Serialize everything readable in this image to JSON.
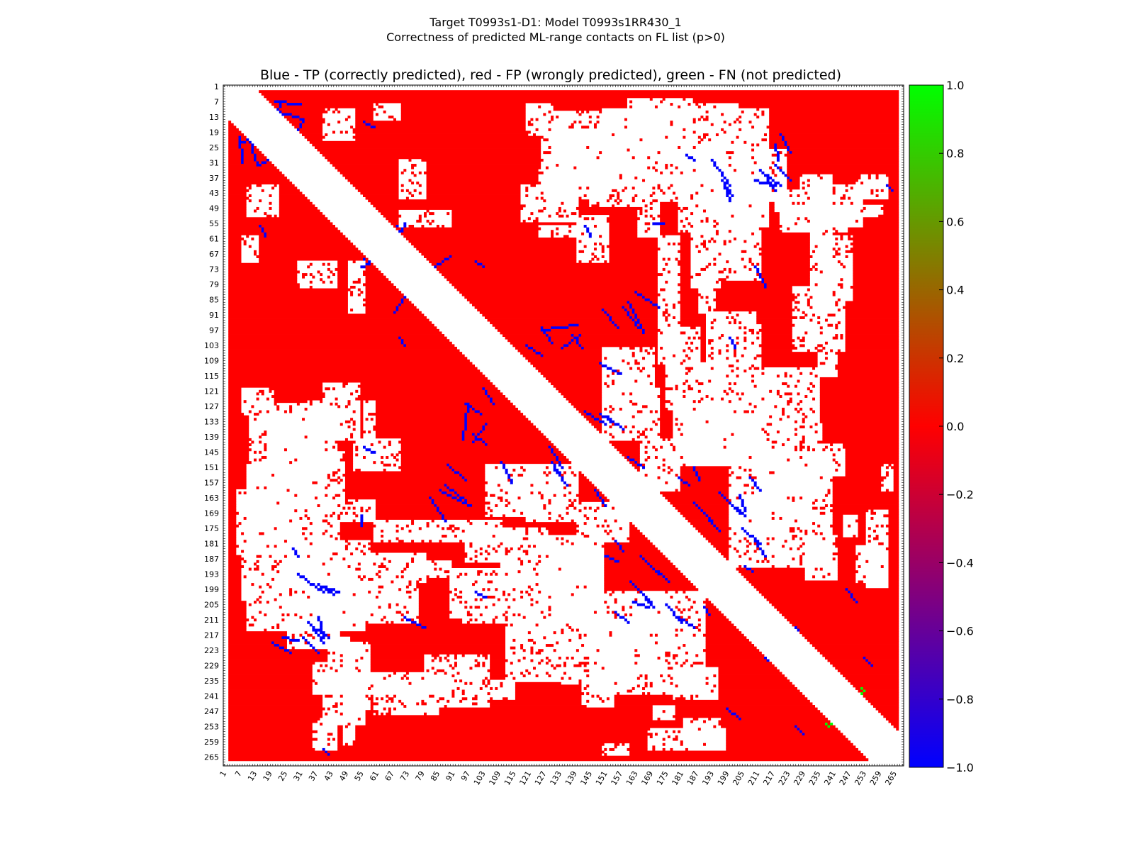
{
  "chart_data": {
    "type": "heatmap",
    "title_line1": "Target T0993s1-D1: Model T0993s1RR430_1",
    "title_line2": "Correctness of predicted ML-range contacts on FL list (p>0)",
    "axes_title": "Blue - TP (correctly predicted), red - FP (wrongly predicted), green - FN (not predicted)",
    "residue_range": [
      1,
      268
    ],
    "tick_labels": [
      "1",
      "7",
      "13",
      "19",
      "25",
      "31",
      "37",
      "43",
      "49",
      "55",
      "61",
      "67",
      "73",
      "79",
      "85",
      "91",
      "97",
      "103",
      "109",
      "115",
      "121",
      "127",
      "133",
      "139",
      "145",
      "151",
      "157",
      "163",
      "169",
      "175",
      "181",
      "187",
      "193",
      "199",
      "205",
      "211",
      "217",
      "223",
      "229",
      "235",
      "241",
      "247",
      "253",
      "259",
      "265"
    ],
    "colorbar": {
      "ticks": [
        "1.0",
        "0.8",
        "0.6",
        "0.4",
        "0.2",
        "0.0",
        "−0.2",
        "−0.4",
        "−0.6",
        "−0.8",
        "−1.0"
      ],
      "range": [
        -1.0,
        1.0
      ],
      "colors": [
        "#00ff00",
        "#ff0000",
        "#0000ff"
      ]
    },
    "cell_colors": {
      "tp": "#0000ff",
      "fp": "#ff0000",
      "fn": "#00ff00",
      "none": "#ffffff"
    },
    "white_blocks": [
      [
        10,
        22,
        40,
        52
      ],
      [
        8,
        14,
        60,
        70
      ],
      [
        8,
        20,
        120,
        130
      ],
      [
        11,
        40,
        126,
        158
      ],
      [
        6,
        30,
        160,
        185
      ],
      [
        8,
        12,
        185,
        203
      ],
      [
        22,
        48,
        145,
        165
      ],
      [
        24,
        42,
        178,
        198
      ],
      [
        37,
        52,
        188,
        208
      ],
      [
        26,
        46,
        210,
        222
      ],
      [
        46,
        56,
        200,
        215
      ],
      [
        52,
        70,
        140,
        152
      ],
      [
        22,
        30,
        146,
        172
      ],
      [
        40,
        54,
        118,
        140
      ],
      [
        48,
        52,
        222,
        245
      ],
      [
        60,
        68,
        145,
        152
      ],
      [
        60,
        110,
        172,
        180
      ],
      [
        75,
        90,
        188,
        194
      ],
      [
        90,
        120,
        191,
        198
      ],
      [
        80,
        105,
        225,
        245
      ],
      [
        36,
        40,
        252,
        262
      ],
      [
        48,
        51,
        256,
        260
      ],
      [
        120,
        128,
        164,
        170
      ],
      [
        126,
        150,
        178,
        200
      ],
      [
        130,
        150,
        188,
        212
      ],
      [
        145,
        175,
        212,
        240
      ],
      [
        150,
        168,
        210,
        230
      ],
      [
        165,
        190,
        200,
        240
      ],
      [
        140,
        160,
        165,
        180
      ],
      [
        130,
        170,
        19,
        36
      ],
      [
        150,
        210,
        10,
        30
      ],
      [
        165,
        215,
        31,
        46
      ],
      [
        180,
        200,
        38,
        58
      ],
      [
        185,
        196,
        52,
        80
      ],
      [
        190,
        212,
        56,
        77
      ],
      [
        200,
        215,
        10,
        55
      ],
      [
        182,
        200,
        110,
        150
      ],
      [
        198,
        210,
        90,
        150
      ],
      [
        200,
        212,
        95,
        135
      ],
      [
        200,
        222,
        150,
        178
      ],
      [
        210,
        235,
        112,
        160
      ],
      [
        235,
        245,
        142,
        154
      ],
      [
        230,
        242,
        178,
        195
      ],
      [
        230,
        240,
        185,
        195
      ],
      [
        133,
        150,
        25,
        45
      ],
      [
        150,
        170,
        104,
        124
      ],
      [
        160,
        172,
        120,
        140
      ],
      [
        175,
        188,
        96,
        128
      ],
      [
        164,
        172,
        45,
        60
      ],
      [
        125,
        140,
        34,
        40
      ],
      [
        125,
        150,
        56,
        60
      ],
      [
        218,
        240,
        42,
        50
      ],
      [
        220,
        246,
        50,
        58
      ],
      [
        228,
        240,
        36,
        44
      ],
      [
        232,
        240,
        52,
        90
      ],
      [
        250,
        262,
        38,
        45
      ],
      [
        252,
        258,
        48,
        52
      ],
      [
        260,
        264,
        150,
        160
      ],
      [
        250,
        262,
        182,
        196
      ],
      [
        168,
        198,
        254,
        262
      ],
      [
        170,
        178,
        245,
        250
      ],
      [
        30,
        45,
        70,
        80
      ],
      [
        50,
        56,
        70,
        90
      ],
      [
        40,
        56,
        232,
        252
      ],
      [
        60,
        85,
        235,
        248
      ],
      [
        120,
        140,
        150,
        160
      ],
      [
        105,
        115,
        235,
        242
      ],
      [
        218,
        225,
        130,
        136
      ],
      [
        222,
        232,
        165,
        172
      ],
      [
        230,
        236,
        134,
        140
      ]
    ],
    "blue_segments": [
      [
        7,
        21,
        8,
        31
      ],
      [
        9,
        16,
        14,
        32
      ],
      [
        7,
        23,
        15,
        21
      ],
      [
        28,
        23,
        32,
        14
      ],
      [
        29,
        22,
        31,
        26
      ],
      [
        55,
        72,
        68,
        67
      ],
      [
        57,
        66,
        69,
        56
      ],
      [
        36,
        38,
        34,
        40
      ],
      [
        48,
        55,
        60,
        52
      ],
      [
        68,
        64,
        70,
        58
      ],
      [
        72,
        84,
        68,
        90
      ],
      [
        84,
        92,
        86,
        96
      ],
      [
        86,
        160,
        98,
        166
      ],
      [
        88,
        158,
        96,
        164
      ],
      [
        99,
        141,
        104,
        134
      ],
      [
        110,
        149,
        114,
        157
      ],
      [
        120,
        103,
        126,
        107
      ],
      [
        126,
        97,
        140,
        95
      ],
      [
        138,
        99,
        142,
        104
      ],
      [
        150,
        89,
        156,
        96
      ],
      [
        163,
        82,
        172,
        88
      ],
      [
        170,
        55,
        174,
        55
      ],
      [
        152,
        131,
        158,
        136
      ],
      [
        129,
        143,
        134,
        151
      ],
      [
        130,
        149,
        134,
        155
      ],
      [
        165,
        186,
        172,
        193
      ],
      [
        167,
        188,
        176,
        196
      ],
      [
        196,
        161,
        204,
        169
      ],
      [
        198,
        163,
        206,
        170
      ],
      [
        197,
        38,
        201,
        44
      ],
      [
        198,
        40,
        200,
        46
      ],
      [
        212,
        34,
        220,
        40
      ],
      [
        214,
        36,
        218,
        42
      ],
      [
        220,
        20,
        224,
        27
      ],
      [
        214,
        208,
        220,
        214
      ],
      [
        226,
        214,
        230,
        220
      ],
      [
        236,
        230,
        244,
        237
      ],
      [
        242,
        231,
        246,
        235
      ],
      [
        253,
        226,
        256,
        229
      ],
      [
        246,
        199,
        250,
        204
      ],
      [
        30,
        193,
        40,
        200
      ],
      [
        38,
        210,
        40,
        218
      ],
      [
        32,
        218,
        38,
        224
      ],
      [
        24,
        218,
        30,
        219
      ],
      [
        40,
        262,
        42,
        264
      ],
      [
        56,
        143,
        60,
        145
      ],
      [
        28,
        183,
        30,
        186
      ],
      [
        186,
        151,
        188,
        156
      ],
      [
        180,
        155,
        184,
        158
      ],
      [
        96,
        126,
        102,
        130
      ],
      [
        70,
        100,
        72,
        103
      ],
      [
        208,
        155,
        212,
        160
      ],
      [
        210,
        180,
        214,
        186
      ],
      [
        175,
        205,
        181,
        212
      ],
      [
        190,
        206,
        192,
        209
      ],
      [
        100,
        200,
        104,
        202
      ],
      [
        56,
        50,
        58,
        48
      ],
      [
        90,
        93,
        92,
        96
      ],
      [
        15,
        56,
        17,
        60
      ],
      [
        160,
        147,
        166,
        151
      ],
      [
        162,
        204,
        168,
        206
      ],
      [
        210,
        72,
        214,
        80
      ]
    ],
    "green_cells": [
      [
        238,
        252
      ],
      [
        239,
        253
      ],
      [
        252,
        240
      ]
    ]
  }
}
